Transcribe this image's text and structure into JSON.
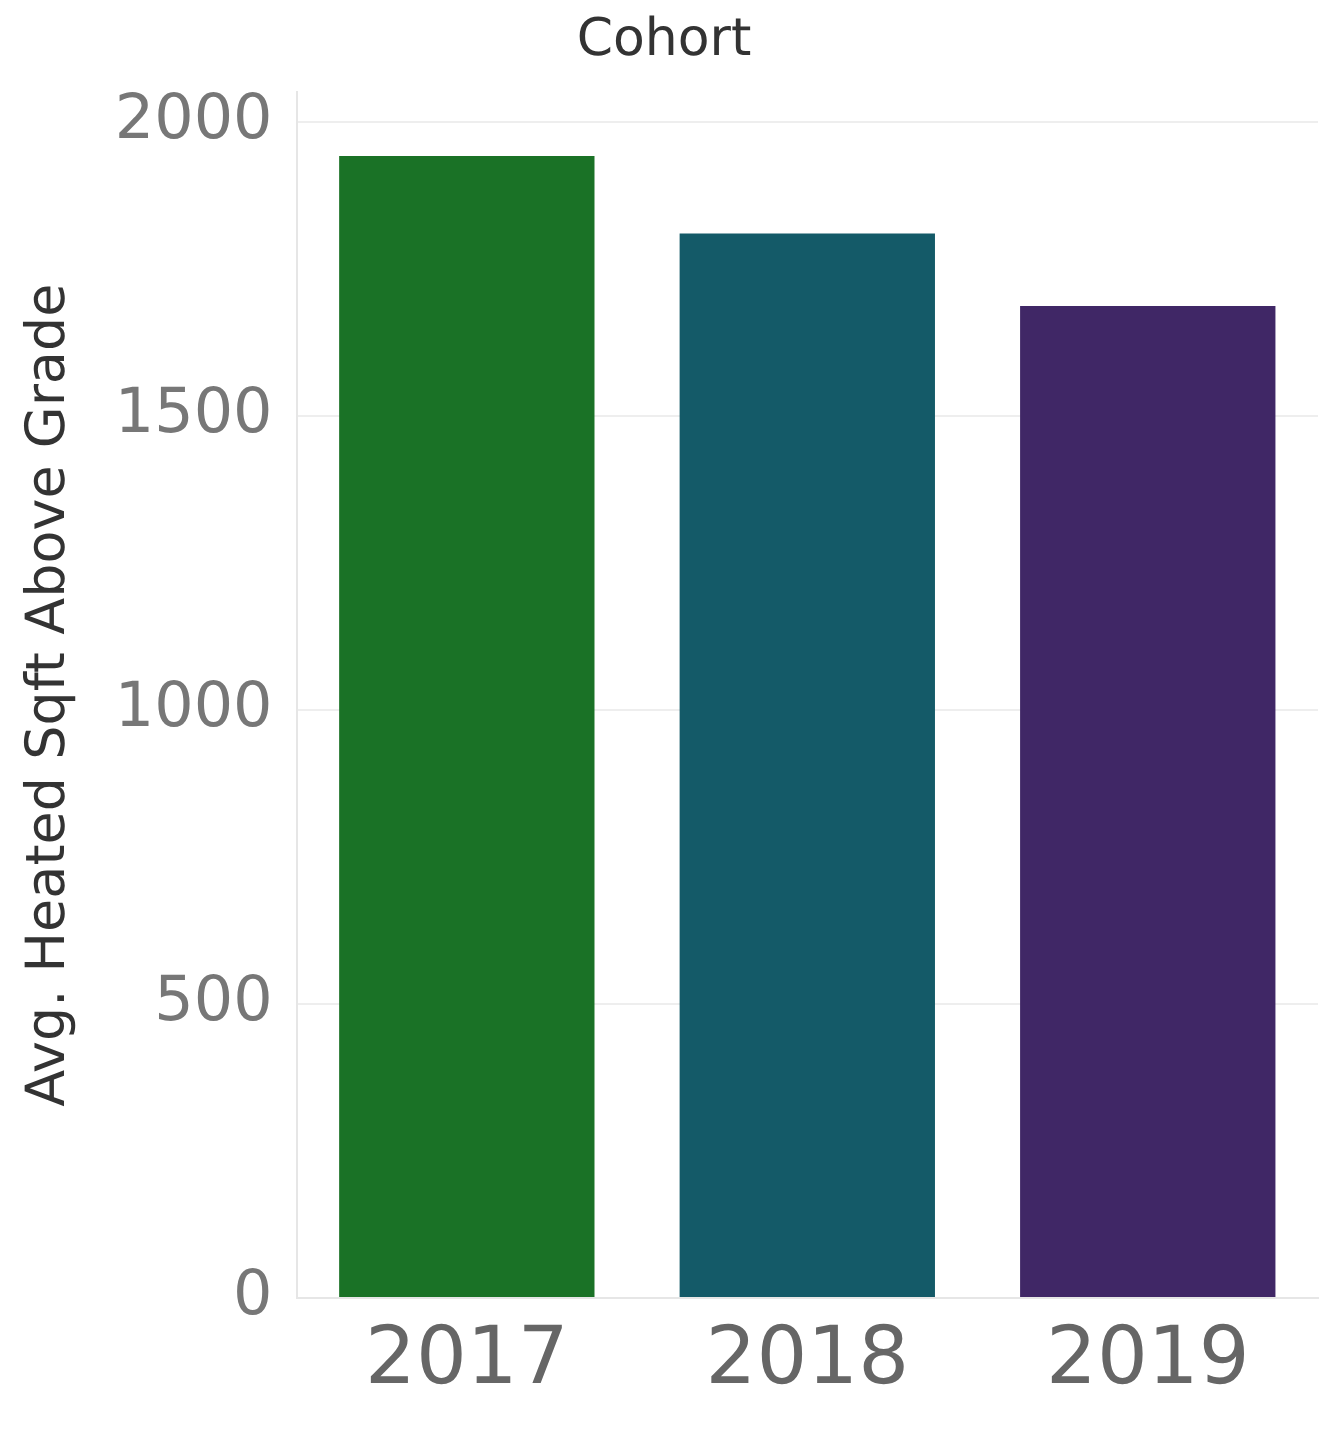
{
  "chart_data": {
    "type": "bar",
    "title": "Cohort",
    "ylabel": "Avg. Heated Sqft Above Grade",
    "categories": [
      "2017",
      "2018",
      "2019"
    ],
    "values": [
      1942,
      1810,
      1687
    ],
    "colors": [
      "#1a7226",
      "#145a68",
      "#402766"
    ],
    "ylim": [
      0,
      2050
    ],
    "yticks": [
      0,
      500,
      1000,
      1500,
      2000
    ],
    "grid": "y",
    "legend": false
  }
}
